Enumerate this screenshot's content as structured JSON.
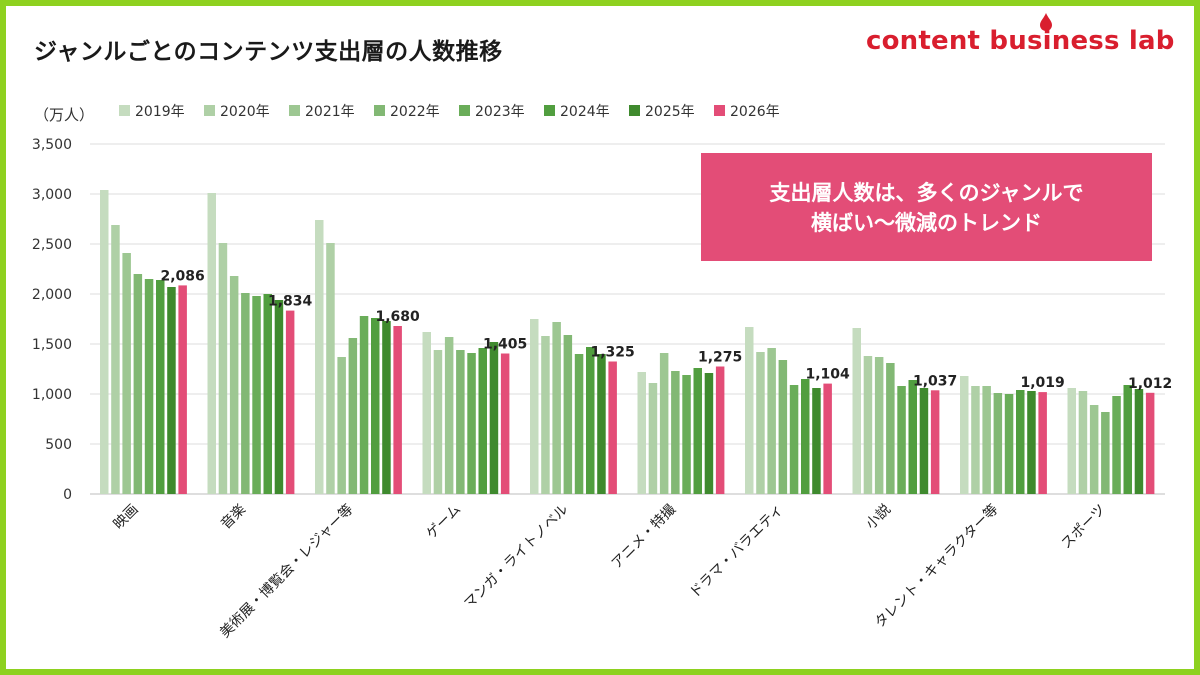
{
  "title": "ジャンルごとのコンテンツ支出層の人数推移",
  "brand": "content business lab",
  "unit_label": "（万人）",
  "callout": {
    "line1": "支出層人数は、多くのジャンルで",
    "line2": "横ばい〜微減のトレンド"
  },
  "colors": {
    "frame": "#8ed11f",
    "brand": "#d91e2e",
    "callout_bg": "#e34d77"
  },
  "chart_data": {
    "type": "bar",
    "ylim": [
      0,
      3500
    ],
    "y_ticks": [
      "0",
      "500",
      "1,000",
      "1,500",
      "2,000",
      "2,500",
      "3,000",
      "3,500"
    ],
    "grid": true,
    "legend_position": "top",
    "categories": [
      "映画",
      "音楽",
      "美術展・博覧会・レジャー等",
      "ゲーム",
      "マンガ・ライトノベル",
      "アニメ・特撮",
      "ドラマ・バラエティ",
      "小説",
      "タレント・キャラクター等",
      "スポーツ"
    ],
    "series": [
      {
        "name": "2019年",
        "color": "#c5dcbf",
        "values": [
          3040,
          3010,
          2740,
          1620,
          1750,
          1220,
          1670,
          1660,
          1180,
          1060
        ]
      },
      {
        "name": "2020年",
        "color": "#afd0a6",
        "values": [
          2690,
          2510,
          2510,
          1440,
          1580,
          1110,
          1420,
          1380,
          1080,
          1030
        ]
      },
      {
        "name": "2021年",
        "color": "#9dc792",
        "values": [
          2410,
          2180,
          1370,
          1570,
          1720,
          1410,
          1460,
          1370,
          1080,
          890
        ]
      },
      {
        "name": "2022年",
        "color": "#82b874",
        "values": [
          2200,
          2010,
          1560,
          1440,
          1590,
          1230,
          1340,
          1310,
          1010,
          820
        ]
      },
      {
        "name": "2023年",
        "color": "#6aad59",
        "values": [
          2150,
          1980,
          1780,
          1410,
          1400,
          1190,
          1090,
          1080,
          1000,
          980
        ]
      },
      {
        "name": "2024年",
        "color": "#519e3f",
        "values": [
          2140,
          2000,
          1760,
          1460,
          1470,
          1260,
          1150,
          1140,
          1040,
          1090
        ]
      },
      {
        "name": "2025年",
        "color": "#3f8a2e",
        "values": [
          2070,
          1940,
          1730,
          1520,
          1400,
          1210,
          1060,
          1060,
          1030,
          1050
        ]
      },
      {
        "name": "2026年",
        "color": "#e34d77",
        "values": [
          2086,
          1834,
          1680,
          1405,
          1325,
          1275,
          1104,
          1037,
          1019,
          1012
        ]
      }
    ],
    "data_labels": [
      "2,086",
      "1,834",
      "1,680",
      "1,405",
      "1,325",
      "1,275",
      "1,104",
      "1,037",
      "1,019",
      "1,012"
    ]
  }
}
